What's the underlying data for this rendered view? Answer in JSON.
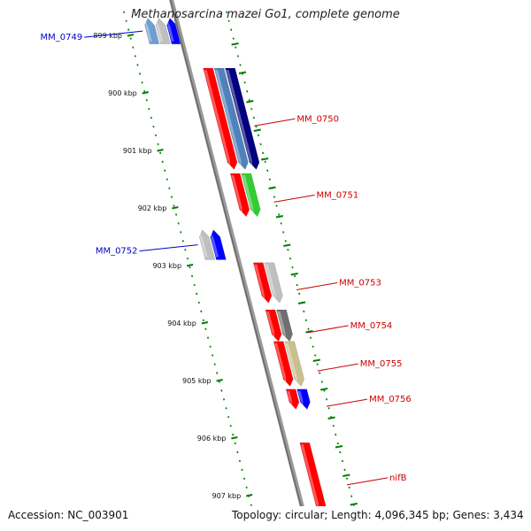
{
  "title": "Methanosarcina mazei Go1, complete genome",
  "footer": {
    "accession": "Accession: NC_003901",
    "summary": "Topology: circular; Length: 4,096,345 bp; Genes: 3,434"
  },
  "colors": {
    "forward_label": "#cc0000",
    "reverse_label": "#0000cc",
    "tick": "#008000",
    "backbone": "#808080"
  },
  "ticks": [
    {
      "kbp": 899,
      "label": "899 kbp"
    },
    {
      "kbp": 900,
      "label": "900 kbp"
    },
    {
      "kbp": 901,
      "label": "901 kbp"
    },
    {
      "kbp": 902,
      "label": "902 kbp"
    },
    {
      "kbp": 903,
      "label": "903 kbp"
    },
    {
      "kbp": 904,
      "label": "904 kbp"
    },
    {
      "kbp": 905,
      "label": "905 kbp"
    },
    {
      "kbp": 906,
      "label": "906 kbp"
    },
    {
      "kbp": 907,
      "label": "907 kbp"
    }
  ],
  "features": [
    {
      "name": "MM_0749",
      "labeled": true,
      "strand": "reverse",
      "start": 898.7,
      "end": 899.15,
      "track": 1,
      "color": "#6f9fcf"
    },
    {
      "name": "",
      "labeled": false,
      "strand": "reverse",
      "start": 898.7,
      "end": 899.15,
      "track": 2,
      "color": "#bfbfbf"
    },
    {
      "name": "",
      "labeled": false,
      "strand": "reverse",
      "start": 898.7,
      "end": 899.15,
      "track": 3,
      "color": "#0000ff"
    },
    {
      "name": "MM_0750",
      "labeled": true,
      "strand": "forward",
      "start": 899.57,
      "end": 901.33,
      "track": 1,
      "color": "#ff0000"
    },
    {
      "name": "",
      "labeled": false,
      "strand": "forward",
      "start": 899.57,
      "end": 901.33,
      "track": 2,
      "color": "#4f81bd"
    },
    {
      "name": "",
      "labeled": false,
      "strand": "forward",
      "start": 899.57,
      "end": 901.33,
      "track": 3,
      "color": "#000080"
    },
    {
      "name": "MM_0751",
      "labeled": true,
      "strand": "forward",
      "start": 901.4,
      "end": 902.15,
      "track": 1,
      "color": "#ff0000"
    },
    {
      "name": "",
      "labeled": false,
      "strand": "forward",
      "start": 901.4,
      "end": 902.15,
      "track": 2,
      "color": "#33cc33"
    },
    {
      "name": "MM_0752",
      "labeled": true,
      "strand": "reverse",
      "start": 902.38,
      "end": 902.9,
      "track": 1,
      "color": "#bfbfbf"
    },
    {
      "name": "",
      "labeled": false,
      "strand": "reverse",
      "start": 902.38,
      "end": 902.9,
      "track": 2,
      "color": "#0000ff"
    },
    {
      "name": "MM_0753",
      "labeled": true,
      "strand": "forward",
      "start": 902.95,
      "end": 903.65,
      "track": 1,
      "color": "#ff0000"
    },
    {
      "name": "",
      "labeled": false,
      "strand": "forward",
      "start": 902.95,
      "end": 903.65,
      "track": 2,
      "color": "#bfbfbf"
    },
    {
      "name": "MM_0754",
      "labeled": true,
      "strand": "forward",
      "start": 903.77,
      "end": 904.32,
      "track": 1,
      "color": "#ff0000"
    },
    {
      "name": "",
      "labeled": false,
      "strand": "forward",
      "start": 903.77,
      "end": 904.32,
      "track": 2,
      "color": "#707070"
    },
    {
      "name": "MM_0755",
      "labeled": true,
      "strand": "forward",
      "start": 904.32,
      "end": 905.1,
      "track": 1,
      "color": "#ff0000"
    },
    {
      "name": "",
      "labeled": false,
      "strand": "forward",
      "start": 904.32,
      "end": 905.1,
      "track": 2,
      "color": "#c9c08f"
    },
    {
      "name": "MM_0756",
      "labeled": true,
      "strand": "forward",
      "start": 905.15,
      "end": 905.5,
      "track": 1,
      "color": "#ff0000"
    },
    {
      "name": "",
      "labeled": false,
      "strand": "forward",
      "start": 905.15,
      "end": 905.5,
      "track": 2,
      "color": "#0000ff"
    },
    {
      "name": "nifB",
      "labeled": true,
      "strand": "forward",
      "start": 906.08,
      "end": 907.3,
      "track": 1,
      "color": "#ff0000"
    }
  ]
}
